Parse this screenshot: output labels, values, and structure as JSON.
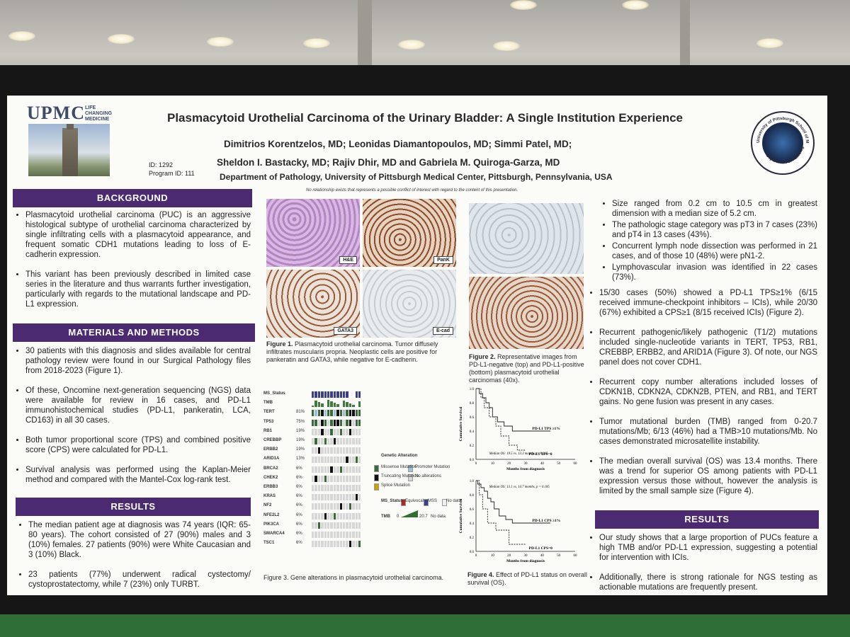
{
  "poster": {
    "logo": "UPMC",
    "logo_tagline": "LIFE CHANGING MEDICINE",
    "id_line": "ID: 1292",
    "program_line": "Program ID: 111",
    "title": "Plasmacytoid Urothelial Carcinoma of the Urinary Bladder: A Single Institution Experience",
    "authors_line1": "Dimitrios Korentzelos, MD; Leonidas Diamantopoulos, MD; Simmi Patel, MD;",
    "authors_line2": "Sheldon I. Bastacky, MD; Rajiv Dhir, MD and Gabriela M. Quiroga-Garza, MD",
    "department": "Department of Pathology, University of Pittsburgh Medical Center, Pittsburgh, Pennsylvania, USA",
    "coi": "No relationship exists that represents a possible conflict of interest with regard to the content of this presentation.",
    "seal_top": "University of Pittsburgh School of Medicine",
    "seal_bottom": "Department of Pathology"
  },
  "background": {
    "heading": "BACKGROUND",
    "items": [
      "Plasmacytoid urothelial carcinoma (PUC) is an aggressive histological subtype of urothelial carcinoma characterized by single infiltrating cells with a plasmacytoid appearance, and frequent somatic CDH1 mutations leading to loss of E-cadherin expression.",
      "This variant has been previously described in limited case series in the literature and thus warrants further investigation, particularly with regards to the mutational landscape and PD-L1 expression."
    ]
  },
  "methods": {
    "heading": "MATERIALS AND METHODS",
    "items": [
      "30 patients with this diagnosis and slides available for central pathology review were found in our Surgical Pathology files from 2018-2023 (Figure 1).",
      "Of these, Oncomine next-generation sequencing (NGS) data were available for review in 16 cases, and PD-L1 immunohistochemical studies (PD-L1, pankeratin, LCA, CD163) in all 30 cases.",
      "Both tumor proportional score (TPS) and combined positive score (CPS) were calculated for PD-L1.",
      "Survival analysis was performed using the Kaplan-Meier method and compared with the Mantel-Cox log-rank test."
    ]
  },
  "results_left": {
    "heading": "RESULTS",
    "items": [
      "The median patient age at diagnosis was 74 years (IQR: 65-80 years). The cohort consisted of 27 (90%) males and 3 (10%) females. 27 patients (90%) were White Caucasian and 3 (10%) Black.",
      "23 patients (77%) underwent radical cystectomy/ cystoprostatectomy, while 7 (23%) only TURBT."
    ]
  },
  "figure1": {
    "labels": [
      "H&E",
      "PanK",
      "GATA3",
      "E-cad"
    ],
    "caption_bold": "Figure 1.",
    "caption": " Plasmacytoid urothelial carcinoma. Tumor diffusely infiltrates muscularis propria. Neoplastic cells are positive for pankeratin and GATA3, while negative for E-cadherin."
  },
  "figure2": {
    "caption_bold": "Figure 2.",
    "caption": " Representative images from PD-L1-negative (top) and PD-L1-positive (bottom) plasmacytoid urothelial carcinomas (40x)."
  },
  "figure3": {
    "caption": "Figure 3. Gene alterations in plasmacytoid urothelial carcinoma.",
    "row_labels": [
      "MS_Status",
      "TMB",
      "TERT",
      "TP53",
      "RB1",
      "CREBBP",
      "ERBB2",
      "ARID1A",
      "BRCA2",
      "CHEK2",
      "ERBB3",
      "KRAS",
      "NF2",
      "NFE2L2",
      "PIK3CA",
      "SMARCA4",
      "TSC1"
    ],
    "percents": [
      "",
      "",
      "81%",
      "75%",
      "19%",
      "19%",
      "19%",
      "13%",
      "6%",
      "6%",
      "6%",
      "6%",
      "6%",
      "6%",
      "6%",
      "6%",
      "6%"
    ],
    "legend_title": "Genetic Alteration",
    "legend_items": [
      "Missense Mutation",
      "Promoter Mutation",
      "Truncating Mutation",
      "No alterations",
      "Splice Mutation"
    ],
    "ms_legend_label": "MS_Status",
    "ms_items": [
      "Equivocal",
      "MSS",
      "No data"
    ],
    "tmb_legend_label": "TMB",
    "tmb_min": "0",
    "tmb_max": "20.7",
    "tmb_nodata": "No data"
  },
  "figure4": {
    "caption_bold": "Figure 4.",
    "caption": " Effect of PD-L1 status on overall survival (OS).",
    "ylabel": "Cumulative Survival",
    "xlabel": "Months from diagnosis",
    "top": {
      "series_hi": "PD-L1 TPS ≥1%",
      "series_lo": "PD-L1 TPS=0",
      "note": "Median OS: 19.5 vs. 13.3 months, p=0.215"
    },
    "bottom": {
      "series_hi": "PD-L1 CPS ≥1%",
      "series_lo": "PD-L1 CPS=0",
      "note": "Median OS: 13.1 vs. 14.7 months, p = 0.185"
    },
    "xticks": [
      "0",
      "10",
      "20",
      "30",
      "40",
      "50",
      "60"
    ],
    "yticks": [
      "0.0",
      "0.2",
      "0.4",
      "0.6",
      "0.8",
      "1.0"
    ]
  },
  "results_right": {
    "items": [
      "Size ranged from 0.2 cm to 10.5 cm in greatest dimension with a median size of 5.2 cm.",
      "The pathologic stage category was pT3 in 7 cases (23%) and pT4 in 13 cases (43%).",
      "Concurrent lymph node dissection was performed in 21 cases, and of those 10 (48%) were pN1-2.",
      "Lymphovascular invasion was identified in 22 cases (73%).",
      "15/30 cases (50%) showed a PD-L1 TPS≥1% (6/15 received immune-checkpoint inhibitors – ICIs), while 20/30 (67%) exhibited a CPS≥1 (8/15 received ICIs) (Figure 2).",
      "Recurrent pathogenic/likely pathogenic (T1/2) mutations included single-nucleotide variants in TERT, TP53, RB1, CREBBP, ERBB2, and ARID1A (Figure 3). Of note, our NGS panel does not cover CDH1.",
      "Recurrent copy number alterations included losses of CDKN1B, CDKN2A, CDKN2B, PTEN, and RB1, and TERT gains. No gene fusion was present in any cases.",
      "Tumor mutational burden (TMB) ranged from 0-20.7 mutations/Mb; 6/13 (46%) had a TMB>10 mutations/Mb. No cases demonstrated microsatellite instability.",
      "The median overall survival (OS) was 13.4 months. There was a trend for superior OS among patients with PD-L1 expression versus those without, however the analysis is limited by the small sample size (Figure 4)."
    ]
  },
  "conclusions": {
    "heading": "RESULTS",
    "items": [
      "Our study shows that a large proportion of PUCs feature a high TMB and/or PD-L1 expression, suggesting a potential for intervention with ICIs.",
      "Additionally, there is strong rationale for NGS testing as actionable mutations are frequently present."
    ]
  },
  "colors": {
    "band": "#4c2a72",
    "poster_bg": "#fbfbf8",
    "frame": "#161616",
    "carpet": "#2f6f36"
  }
}
